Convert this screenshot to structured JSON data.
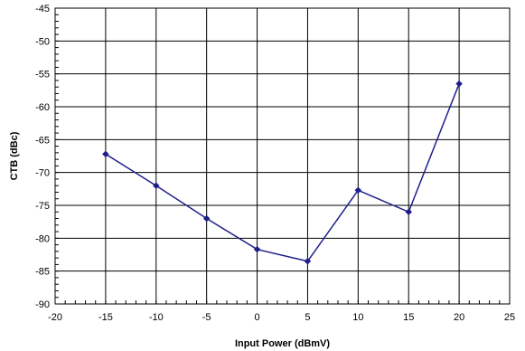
{
  "chart_data": {
    "type": "line",
    "title": "",
    "xlabel": "Input Power (dBmV)",
    "ylabel": "CTB (dBc)",
    "xlim": [
      -20,
      25
    ],
    "ylim": [
      -90,
      -45
    ],
    "xticks": [
      -20,
      -15,
      -10,
      -5,
      0,
      5,
      10,
      15,
      20,
      25
    ],
    "yticks": [
      -90,
      -85,
      -80,
      -75,
      -70,
      -65,
      -60,
      -55,
      -50,
      -45
    ],
    "x_minor_step": 1,
    "y_minor_step": 1,
    "grid": "major",
    "series": [
      {
        "color": "#1f1f8c",
        "marker": "diamond",
        "x": [
          -15,
          -10,
          -5,
          0,
          5,
          10,
          15,
          20
        ],
        "y": [
          -67.2,
          -72.0,
          -77.0,
          -81.7,
          -83.5,
          -72.7,
          -76.0,
          -56.5
        ]
      }
    ]
  }
}
